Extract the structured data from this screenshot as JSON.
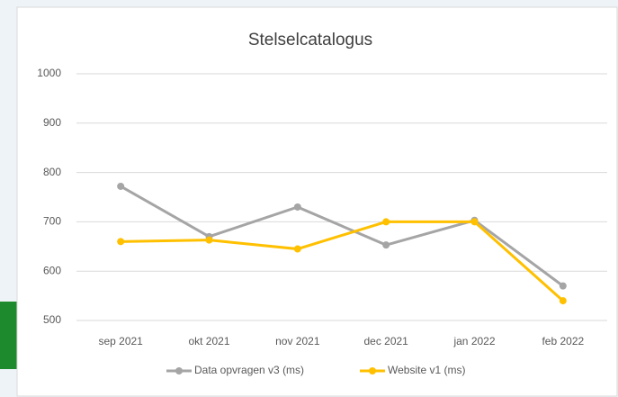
{
  "chart_data": {
    "type": "line",
    "title": "Stelselcatalogus",
    "categories": [
      "sep 2021",
      "okt 2021",
      "nov 2021",
      "dec 2021",
      "jan 2022",
      "feb 2022"
    ],
    "series": [
      {
        "name": "Data opvragen v3 (ms)",
        "color": "#a5a5a5",
        "values": [
          772,
          670,
          730,
          653,
          703,
          570
        ]
      },
      {
        "name": "Website v1 (ms)",
        "color": "#ffc000",
        "values": [
          660,
          663,
          645,
          700,
          700,
          540
        ]
      }
    ],
    "ylim": [
      500,
      1000
    ],
    "yticks": [
      500,
      600,
      700,
      800,
      900,
      1000
    ],
    "grid": true,
    "legend": "bottom"
  }
}
